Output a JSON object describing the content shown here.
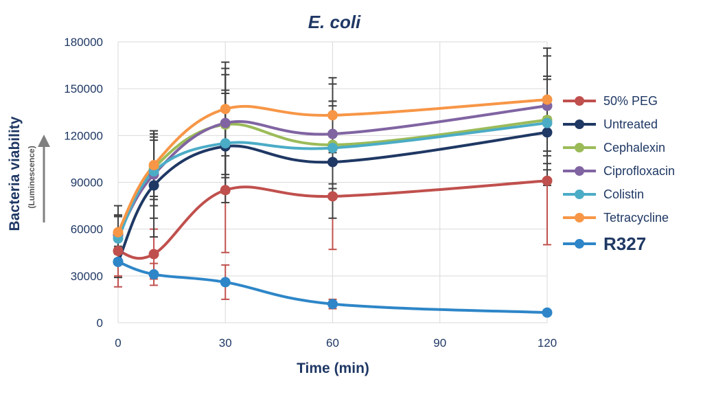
{
  "chart_data": {
    "type": "line",
    "title": "E. coli",
    "xlabel": "Time (min)",
    "ylabel": "Bacteria viability",
    "ylabel_sub": "(Luminescence)",
    "x": [
      0,
      10,
      30,
      60,
      120
    ],
    "xlim": [
      0,
      120
    ],
    "ylim": [
      0,
      180000
    ],
    "xticks": [
      0,
      30,
      60,
      90,
      120
    ],
    "yticks": [
      0,
      30000,
      60000,
      90000,
      120000,
      150000,
      180000
    ],
    "xtick_labels": [
      "0",
      "30",
      "60",
      "90",
      "120"
    ],
    "ytick_labels": [
      "0",
      "30000",
      "60000",
      "90000",
      "120000",
      "150000",
      "180000"
    ],
    "grid": true,
    "legend_position": "right",
    "series": [
      {
        "name": "50% PEG",
        "color": "#c0504d",
        "values": [
          46000,
          44000,
          85000,
          81000,
          91000
        ],
        "errors": [
          23000,
          16000,
          40000,
          34000,
          41000
        ],
        "error_color": "#c0504d"
      },
      {
        "name": "Untreated",
        "color": "#1f3864",
        "values": [
          39000,
          88000,
          113000,
          103000,
          122000
        ],
        "errors": [
          10000,
          33000,
          36000,
          36000,
          34000
        ],
        "error_color": "#404040"
      },
      {
        "name": "Cephalexin",
        "color": "#9bbb59",
        "values": [
          57000,
          99000,
          127000,
          114000,
          130000
        ],
        "errors": [
          12000,
          18000,
          32000,
          28000,
          28000
        ],
        "error_color": "#404040"
      },
      {
        "name": "Ciprofloxacin",
        "color": "#8064a2",
        "values": [
          56000,
          95000,
          128000,
          121000,
          139000
        ],
        "errors": [
          12000,
          28000,
          35000,
          32000,
          32000
        ],
        "error_color": "#404040"
      },
      {
        "name": "Colistin",
        "color": "#4bacc6",
        "values": [
          54000,
          97000,
          115000,
          112000,
          128000
        ],
        "errors": [
          15000,
          22000,
          32000,
          30000,
          30000
        ],
        "error_color": "#404040"
      },
      {
        "name": "Tetracycline",
        "color": "#f79646",
        "values": [
          58000,
          101000,
          137000,
          133000,
          143000
        ],
        "errors": [
          17000,
          22000,
          30000,
          24000,
          33000
        ],
        "error_color": "#404040"
      },
      {
        "name": "R327",
        "color": "#2e86c8",
        "values": [
          39000,
          31000,
          26000,
          12000,
          6500
        ],
        "errors": [
          9000,
          7000,
          11000,
          3000,
          1000
        ],
        "error_color": "#c0504d",
        "emphasized": true
      }
    ]
  }
}
